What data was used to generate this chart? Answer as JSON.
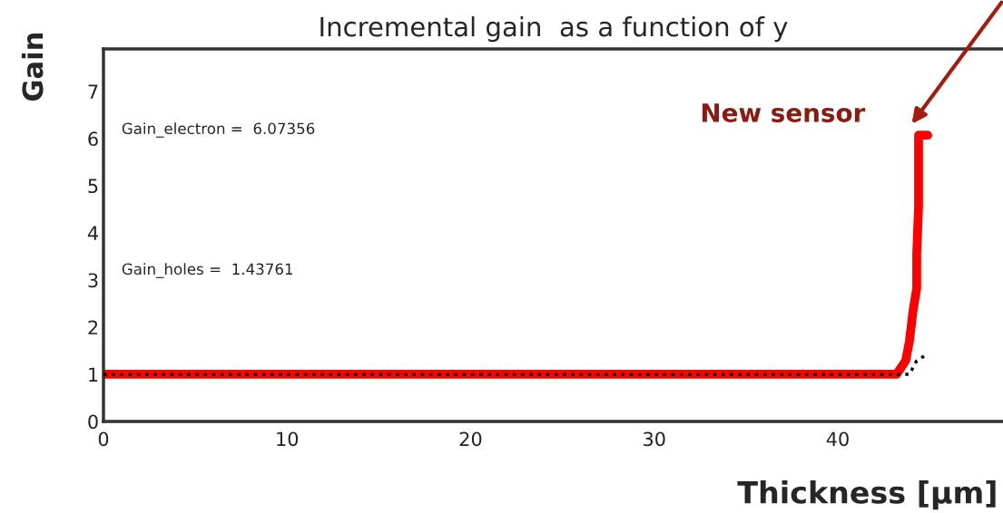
{
  "chart_data": {
    "type": "line",
    "title": "Incremental gain  as a function of y",
    "xlabel": "Thickness [μm]",
    "ylabel": "Gain",
    "xlim": [
      0,
      49
    ],
    "xticks": [
      0,
      10,
      20,
      30,
      40
    ],
    "ylim": [
      0,
      7.9
    ],
    "yticks": [
      0,
      1,
      2,
      3,
      4,
      5,
      6,
      7
    ],
    "grid": false,
    "series": [
      {
        "color": "#ff0000",
        "x": [
          0,
          10,
          20,
          30,
          40,
          43.2,
          43.7,
          43.9,
          44.1,
          44.3,
          44.3,
          44.4,
          44.4,
          44.9
        ],
        "values": [
          1,
          1,
          1,
          1,
          1,
          1.0,
          1.29,
          1.7,
          2.35,
          2.83,
          3.56,
          4.56,
          6.07,
          6.07
        ]
      },
      {
        "color": "#000000",
        "line_style": "dotted",
        "x": [
          0,
          10,
          20,
          30,
          40,
          43.9,
          44.3,
          44.8
        ],
        "values": [
          1,
          1,
          1,
          1,
          1,
          1.0,
          1.29,
          1.41
        ]
      }
    ],
    "annotations": [
      "Gain_electron =  6.07356",
      "Gain_holes =  1.43761",
      {
        "text": "New sensor",
        "x": 44.4,
        "y": 6.07
      }
    ]
  }
}
